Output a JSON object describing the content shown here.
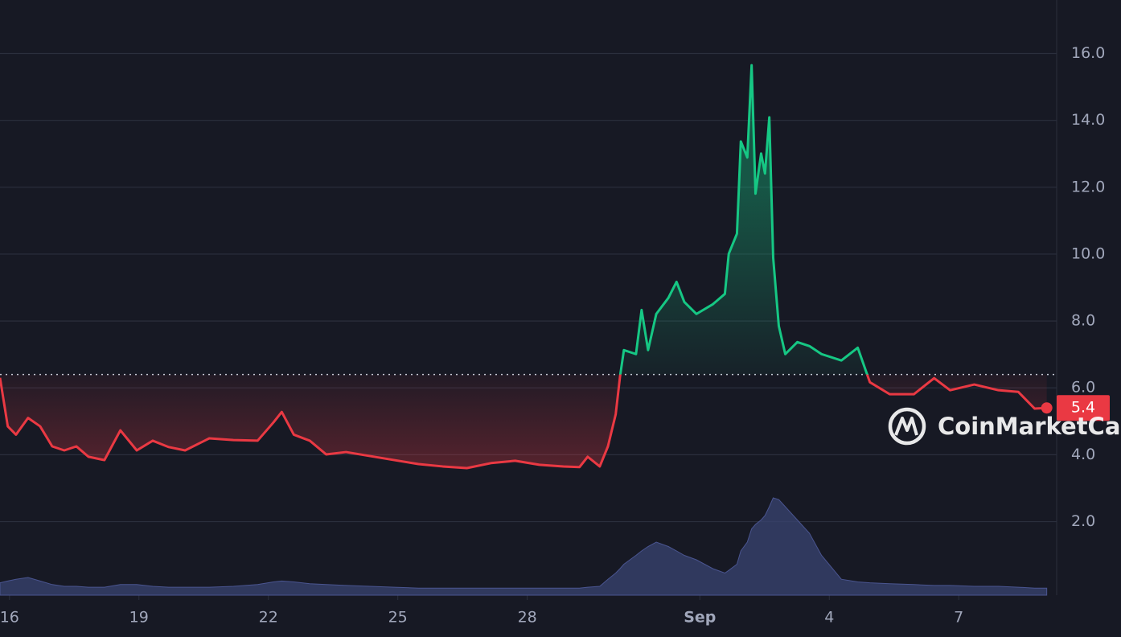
{
  "chart_data": {
    "type": "line",
    "x": [
      -0.22,
      -0.04,
      0.15,
      0.43,
      0.71,
      0.99,
      1.27,
      1.55,
      1.83,
      2.2,
      2.57,
      2.95,
      3.32,
      3.69,
      4.07,
      4.63,
      5.19,
      5.75,
      6.12,
      6.31,
      6.59,
      6.96,
      7.34,
      7.8,
      8.36,
      8.92,
      9.48,
      10.04,
      10.6,
      11.16,
      11.72,
      12.28,
      12.84,
      13.21,
      13.4,
      13.68,
      13.87,
      14.05,
      14.15,
      14.24,
      14.52,
      14.65,
      14.8,
      14.99,
      15.27,
      15.46,
      15.64,
      15.92,
      16.3,
      16.58,
      16.67,
      16.86,
      16.95,
      17.1,
      17.2,
      17.29,
      17.42,
      17.51,
      17.61,
      17.7,
      17.83,
      17.98,
      18.26,
      18.54,
      18.82,
      19.28,
      19.66,
      19.94,
      20.4,
      20.96,
      21.43,
      21.8,
      22.36,
      22.92,
      23.38,
      23.76,
      24.04
    ],
    "values": [
      6.3,
      4.85,
      4.6,
      5.1,
      4.85,
      4.25,
      4.13,
      4.25,
      3.94,
      3.84,
      4.73,
      4.13,
      4.42,
      4.23,
      4.13,
      4.49,
      4.44,
      4.42,
      4.97,
      5.28,
      4.6,
      4.42,
      4.01,
      4.08,
      3.96,
      3.84,
      3.72,
      3.65,
      3.6,
      3.75,
      3.82,
      3.7,
      3.65,
      3.63,
      3.94,
      3.65,
      4.25,
      5.21,
      6.34,
      7.13,
      7.01,
      8.33,
      7.13,
      8.21,
      8.69,
      9.17,
      8.57,
      8.21,
      8.5,
      8.81,
      10.01,
      10.61,
      13.37,
      12.89,
      15.65,
      11.81,
      13.01,
      12.41,
      14.09,
      9.89,
      7.85,
      7.01,
      7.37,
      7.25,
      7.01,
      6.82,
      7.2,
      6.17,
      5.81,
      5.81,
      6.29,
      5.93,
      6.1,
      5.93,
      5.88,
      5.38,
      5.4
    ],
    "volume": [
      14,
      16,
      18,
      20,
      16,
      12,
      10,
      10,
      9,
      9,
      12,
      12,
      10,
      9,
      9,
      9,
      10,
      12,
      15,
      16,
      15,
      13,
      12,
      11,
      10,
      9,
      8,
      8,
      8,
      8,
      8,
      8,
      8,
      8,
      9,
      10,
      18,
      25,
      30,
      35,
      45,
      50,
      55,
      60,
      55,
      50,
      45,
      40,
      30,
      25,
      28,
      35,
      50,
      60,
      75,
      80,
      85,
      90,
      100,
      110,
      108,
      100,
      85,
      70,
      45,
      18,
      15,
      14,
      13,
      12,
      11,
      11,
      10,
      10,
      9,
      8,
      8
    ],
    "baseline": 6.4,
    "up_color": "#16c784",
    "down_color": "#ea3943",
    "volume_color": "#3a4472",
    "xlim": [
      -0.22,
      24.27
    ],
    "ylim": [
      -0.2,
      17.6
    ],
    "xticks": [
      {
        "value": 0,
        "label": "16"
      },
      {
        "value": 3,
        "label": "19"
      },
      {
        "value": 6,
        "label": "22"
      },
      {
        "value": 9,
        "label": "25"
      },
      {
        "value": 12,
        "label": "28"
      },
      {
        "value": 16,
        "label": "Sep"
      },
      {
        "value": 19,
        "label": "4"
      },
      {
        "value": 22,
        "label": "7"
      }
    ],
    "yticks": [
      {
        "value": 2,
        "label": "2.0"
      },
      {
        "value": 4,
        "label": "4.0"
      },
      {
        "value": 6,
        "label": "6.0"
      },
      {
        "value": 8,
        "label": "8.0"
      },
      {
        "value": 10,
        "label": "10.0"
      },
      {
        "value": 12,
        "label": "12.0"
      },
      {
        "value": 14,
        "label": "14.0"
      },
      {
        "value": 16,
        "label": "16.0"
      }
    ],
    "grid": true,
    "watermark": "CoinMarketCap"
  }
}
